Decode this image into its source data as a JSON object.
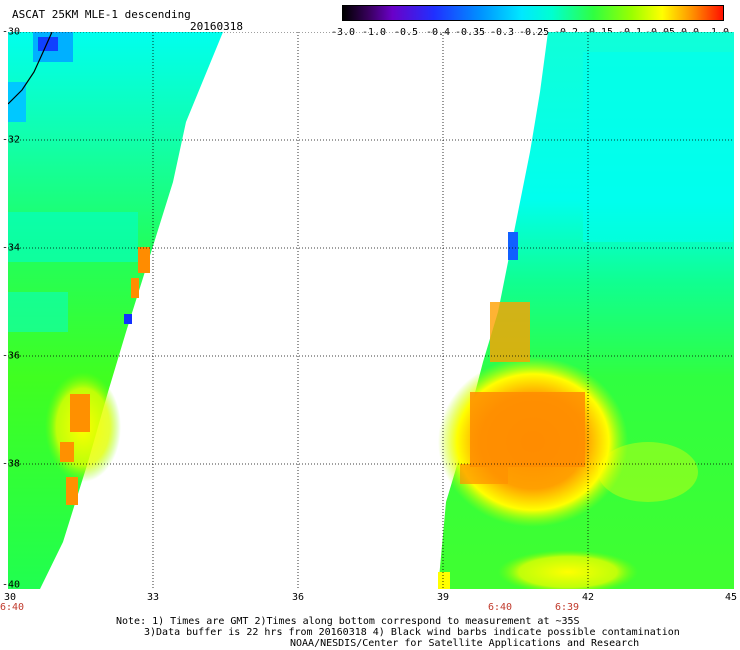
{
  "header": {
    "title": "ASCAT 25KM MLE-1 descending",
    "date": "20160318"
  },
  "colorbar": {
    "tick_labels": [
      "-3.0",
      "-1.0",
      "-0.5",
      "-0.4",
      "-0.35",
      "-0.3",
      "-0.25",
      "-0.2",
      "-0.15",
      "-0.1",
      "-0.05",
      "0.0",
      "1.0"
    ]
  },
  "map": {
    "lat_labels": [
      "-30",
      "-32",
      "-34",
      "-36",
      "-38",
      "-40"
    ],
    "lon_labels": [
      "30",
      "33",
      "36",
      "39",
      "42",
      "45"
    ],
    "time_labels": [
      "6:40",
      "6:40",
      "6:39"
    ],
    "grid": true,
    "colors": {
      "high": "#ff8c00",
      "mid": "#ffff00",
      "low": "#00ff60",
      "very_low": "#00ffee",
      "min": "#0030ff",
      "time_label": "#c0392b"
    }
  },
  "notes": {
    "line1": "Note: 1) Times are GMT 2)Times along bottom correspond to measurement at ~35S",
    "line2": "3)Data buffer is 22 hrs from 20160318 4) Black wind barbs indicate possible contamination",
    "line3": "NOAA/NESDIS/Center for Satellite Applications and Research"
  }
}
